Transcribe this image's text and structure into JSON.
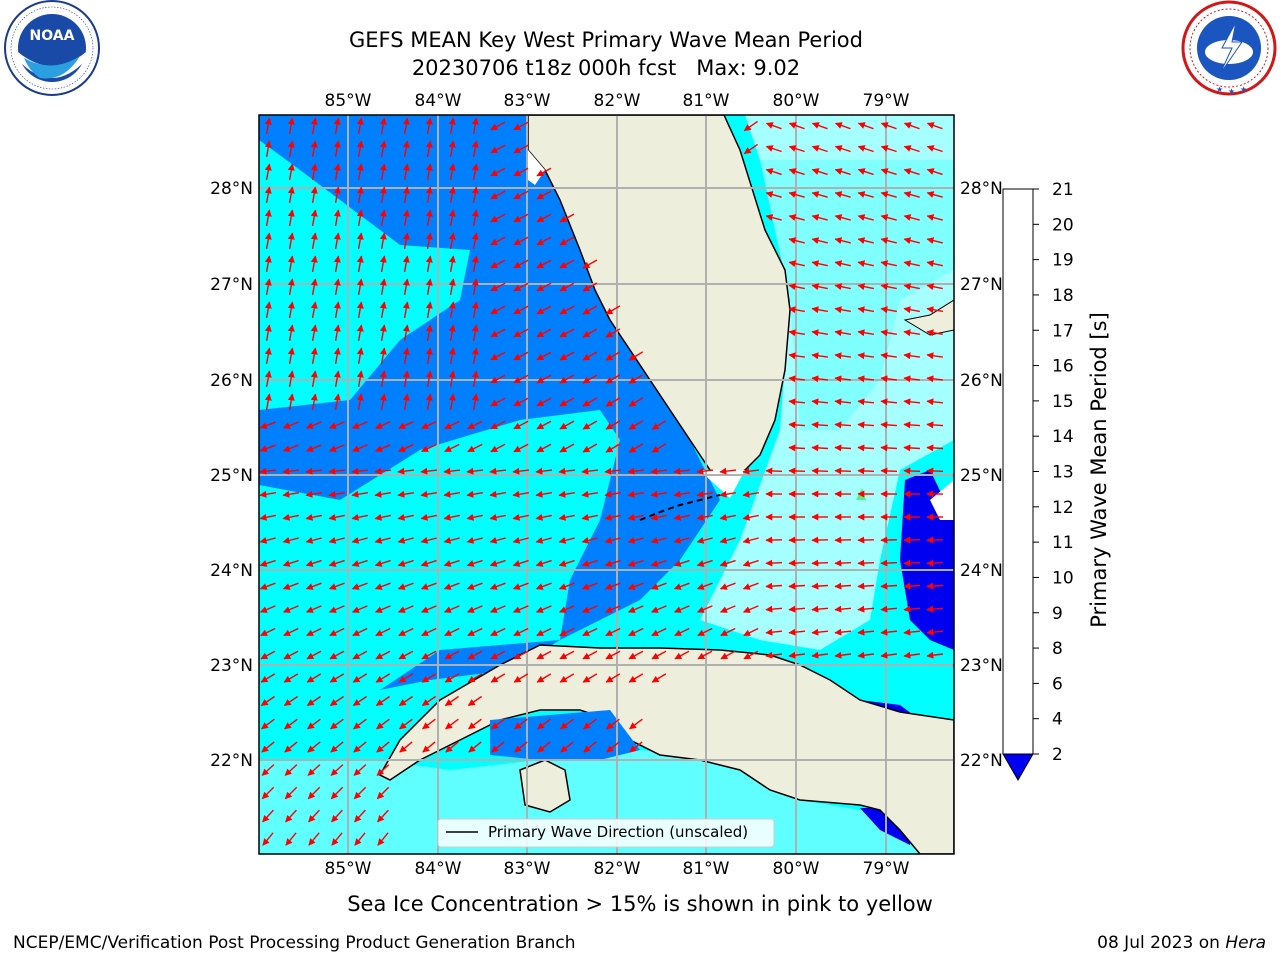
{
  "title_line1": "GEFS MEAN Key West Primary Wave Mean Period",
  "title_line2": "20230706 t18z 000h fcst   Max: 9.02",
  "logos": {
    "left": {
      "name": "noaa-logo",
      "text": "NOAA",
      "ring_text": "NATIONAL OCEANIC AND ATMOSPHERIC ADMINISTRATION · U.S. DEPARTMENT OF COMMERCE"
    },
    "right": {
      "name": "nws-logo",
      "ring_text": "NATIONAL WEATHER SERVICE"
    }
  },
  "map": {
    "lon_labels": [
      "85°W",
      "84°W",
      "83°W",
      "82°W",
      "81°W",
      "80°W",
      "79°W"
    ],
    "lat_labels": [
      "28°N",
      "27°N",
      "26°N",
      "25°N",
      "24°N",
      "23°N",
      "22°N"
    ],
    "legend": "Primary Wave Direction (unscaled)",
    "colors": {
      "land": "#eeeedd",
      "ocean_deep": "#0080ff",
      "ocean_cyan": "#00ffff",
      "ocean_light": "#80ffff",
      "ocean_pale": "#a6ffff",
      "ocean_dark": "#0000f0",
      "arrow": "#ff0000",
      "grid": "#b0b0b0"
    }
  },
  "colorbar": {
    "label": "Primary Wave Mean Period [s]",
    "ticks": [
      "2",
      "4",
      "6",
      "8",
      "9",
      "10",
      "11",
      "12",
      "13",
      "14",
      "15",
      "16",
      "17",
      "18",
      "19",
      "20",
      "21"
    ],
    "colors": [
      "#0080ff",
      "#00ffff",
      "#5fffff",
      "#9fffff",
      "#5af07a",
      "#1fe02a",
      "#00d000",
      "#4fd700",
      "#8fdf00",
      "#c8ee00",
      "#f0f000",
      "#ffe000",
      "#ffb800",
      "#ff9000",
      "#ff6400",
      "#ff3c00",
      "#ff0000"
    ],
    "under_color": "#0000f0"
  },
  "footer": {
    "note": "Sea Ice Concentration > 15% is shown in pink to yellow",
    "credit": "NCEP/EMC/Verification Post Processing Product Generation Branch",
    "date": "08 Jul 2023 on",
    "host": "Hera"
  }
}
